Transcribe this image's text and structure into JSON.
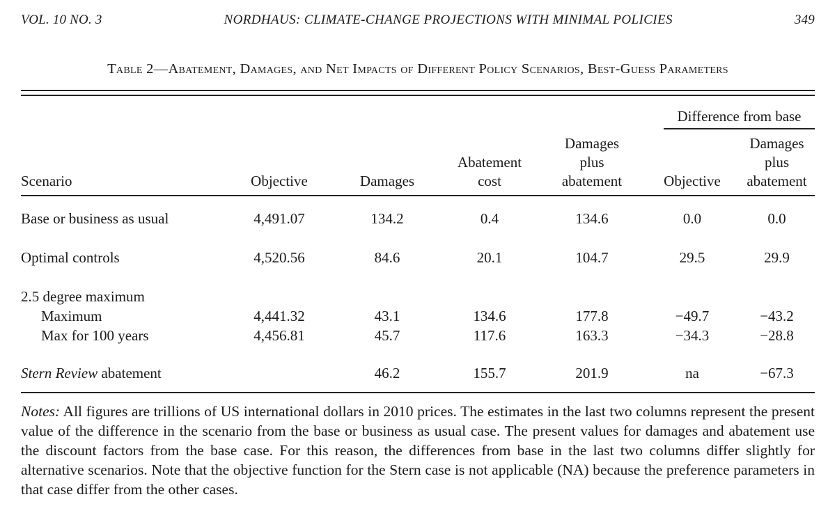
{
  "header": {
    "volume": "VOL. 10 NO. 3",
    "title": "NORDHAUS: CLIMATE-CHANGE PROJECTIONS WITH MINIMAL POLICIES",
    "page": "349"
  },
  "table": {
    "caption": "Table 2—Abatement, Damages, and Net Impacts of Different Policy Scenarios, Best-Guess Parameters",
    "spanner": "Difference from base",
    "columns": {
      "scenario": "Scenario",
      "objective": "Objective",
      "damages": "Damages",
      "abatement_cost": "Abatement cost",
      "damages_plus_abatement": "Damages plus abatement",
      "diff_objective": "Objective",
      "diff_damages_plus_abatement": "Damages plus abatement"
    },
    "rows": [
      {
        "label": "Base or business as usual",
        "cells": [
          "4,491.07",
          "134.2",
          "0.4",
          "134.6",
          "0.0",
          "0.0"
        ]
      },
      {
        "label": "Optimal controls",
        "cells": [
          "4,520.56",
          "84.6",
          "20.1",
          "104.7",
          "29.5",
          "29.9"
        ]
      },
      {
        "label": "2.5 degree maximum",
        "cells": [
          "",
          "",
          "",
          "",
          "",
          ""
        ]
      },
      {
        "label": "Maximum",
        "cells": [
          "4,441.32",
          "43.1",
          "134.6",
          "177.8",
          "−49.7",
          "−43.2"
        ]
      },
      {
        "label": "Max for 100 years",
        "cells": [
          "4,456.81",
          "45.7",
          "117.6",
          "163.3",
          "−34.3",
          "−28.8"
        ]
      },
      {
        "label_italic": "Stern Review",
        "label": " abatement",
        "cells": [
          "",
          "46.2",
          "155.7",
          "201.9",
          "na",
          "−67.3"
        ]
      }
    ]
  },
  "notes": {
    "label": "Notes:",
    "text": " All figures are trillions of US international dollars in 2010 prices. The estimates in the last two columns represent the present value of the difference in the scenario from the base or business as usual case. The present values for damages and abatement use the discount factors from the base case. For this reason, the differences from base in the last two columns differ slightly for alternative scenarios. Note that the objective function for the Stern case is not applicable (NA) because the preference parameters in that case differ from the other cases."
  }
}
